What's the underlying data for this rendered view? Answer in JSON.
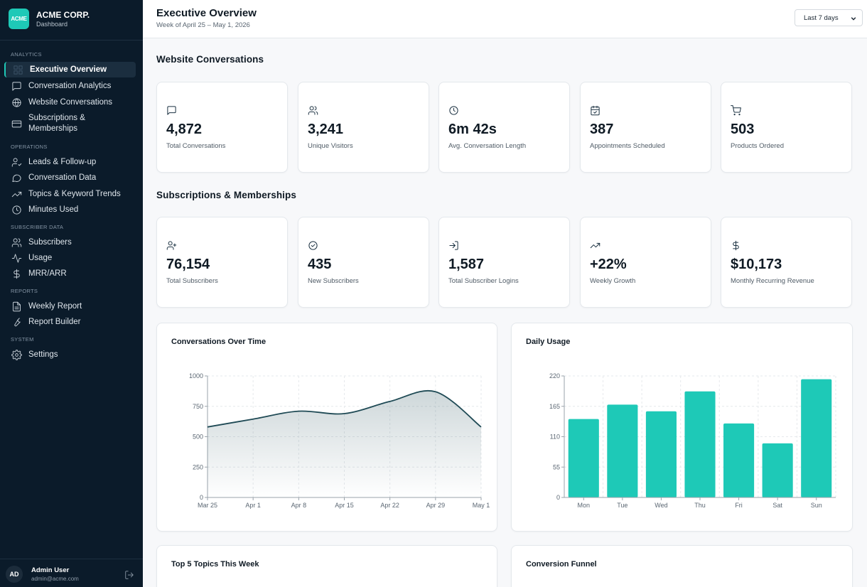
{
  "brand": {
    "logo_text": "ACME",
    "name": "ACME CORP.",
    "subtitle": "Dashboard"
  },
  "sidebar": {
    "sections": [
      {
        "label": "ANALYTICS",
        "items": [
          {
            "label": "Executive Overview",
            "icon": "grid-icon",
            "active": true
          },
          {
            "label": "Conversation Analytics",
            "icon": "message-square-icon"
          },
          {
            "label": "Website Conversations",
            "icon": "globe-icon"
          },
          {
            "label": "Subscriptions &",
            "label2": "Memberships",
            "icon": "credit-card-icon"
          }
        ]
      },
      {
        "label": "OPERATIONS",
        "items": [
          {
            "label": "Leads & Follow-up",
            "icon": "user-check-icon"
          },
          {
            "label": "Conversation Data",
            "icon": "message-circle-icon"
          },
          {
            "label": "Topics & Keyword Trends",
            "icon": "trending-up-icon"
          },
          {
            "label": "Minutes Used",
            "icon": "clock-icon"
          }
        ]
      },
      {
        "label": "SUBSCRIBER DATA",
        "items": [
          {
            "label": "Subscribers",
            "icon": "users-icon"
          },
          {
            "label": "Usage",
            "icon": "activity-icon"
          },
          {
            "label": "MRR/ARR",
            "icon": "dollar-icon"
          }
        ]
      },
      {
        "label": "REPORTS",
        "items": [
          {
            "label": "Weekly Report",
            "icon": "file-text-icon"
          },
          {
            "label": "Report Builder",
            "icon": "wrench-icon"
          }
        ]
      },
      {
        "label": "SYSTEM",
        "items": [
          {
            "label": "Settings",
            "icon": "gear-icon"
          }
        ]
      }
    ]
  },
  "user": {
    "initials": "AD",
    "name": "Admin User",
    "email": "admin@acme.com"
  },
  "header": {
    "title": "Executive Overview",
    "subtitle": "Week of April 25 – May 1, 2026",
    "range": "Last 7 days"
  },
  "website_section": {
    "title": "Website Conversations",
    "kpis": [
      {
        "value": "4,872",
        "label": "Total Conversations",
        "icon": "message-square-icon"
      },
      {
        "value": "3,241",
        "label": "Unique Visitors",
        "icon": "users-icon"
      },
      {
        "value": "6m 42s",
        "label": "Avg. Conversation Length",
        "icon": "clock-icon"
      },
      {
        "value": "387",
        "label": "Appointments Scheduled",
        "icon": "calendar-check-icon"
      },
      {
        "value": "503",
        "label": "Products Ordered",
        "icon": "cart-icon"
      }
    ]
  },
  "subs_section": {
    "title": "Subscriptions & Memberships",
    "kpis": [
      {
        "value": "76,154",
        "label": "Total Subscribers",
        "icon": "user-plus-icon"
      },
      {
        "value": "435",
        "label": "New Subscribers",
        "icon": "check-circle-icon"
      },
      {
        "value": "1,587",
        "label": "Total Subscriber Logins",
        "icon": "log-in-icon"
      },
      {
        "value": "+22%",
        "label": "Weekly Growth",
        "icon": "trending-up-icon"
      },
      {
        "value": "$10,173",
        "label": "Monthly Recurring Revenue",
        "icon": "dollar-icon"
      }
    ]
  },
  "chart_data": [
    {
      "type": "area",
      "title": "Conversations Over Time",
      "x": [
        "Mar 25",
        "Apr 1",
        "Apr 8",
        "Apr 15",
        "Apr 22",
        "Apr 29",
        "May 1"
      ],
      "values": [
        580,
        645,
        710,
        690,
        790,
        870,
        580
      ],
      "ylim": [
        0,
        1000
      ],
      "yticks": [
        0,
        250,
        500,
        750,
        1000
      ],
      "grid": true,
      "color": "#1f4a55"
    },
    {
      "type": "bar",
      "title": "Daily Usage",
      "categories": [
        "Mon",
        "Tue",
        "Wed",
        "Thu",
        "Fri",
        "Sat",
        "Sun"
      ],
      "values": [
        142,
        168,
        156,
        192,
        134,
        98,
        214
      ],
      "ylim": [
        0,
        220
      ],
      "yticks": [
        0,
        55,
        110,
        165,
        220
      ],
      "grid": true,
      "color": "#1ec9b7"
    }
  ],
  "bottom_cards": {
    "topics_title": "Top 5 Topics This Week",
    "funnel_title": "Conversion Funnel"
  }
}
